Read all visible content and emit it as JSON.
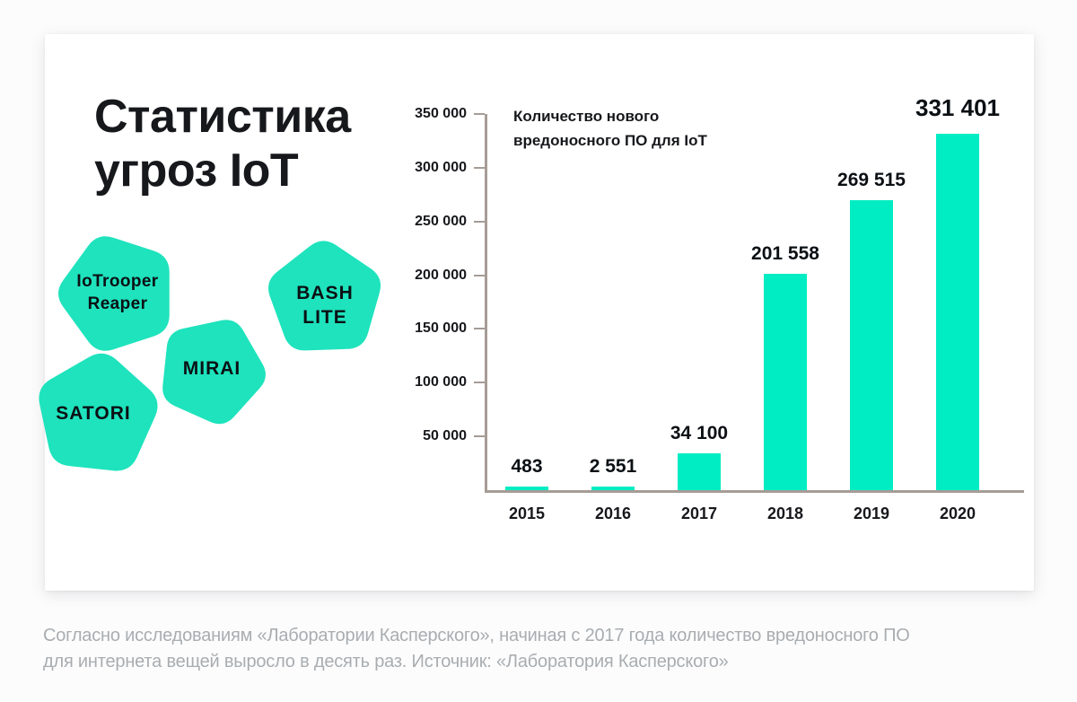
{
  "card": {
    "title": "Статистика угроз IoT",
    "threats": [
      {
        "name": "IoTrooper Reaper",
        "lines": [
          "IoTrooper",
          "Reaper"
        ]
      },
      {
        "name": "BASH LITE",
        "lines": [
          "BASH",
          "LITE"
        ]
      },
      {
        "name": "MIRAI",
        "lines": [
          "MIRAI"
        ]
      },
      {
        "name": "SATORI",
        "lines": [
          "SATORI"
        ]
      }
    ]
  },
  "chart_data": {
    "type": "bar",
    "title": "Количество нового вредоносного ПО для IoT",
    "categories": [
      "2015",
      "2016",
      "2017",
      "2018",
      "2019",
      "2020"
    ],
    "values": [
      483,
      2551,
      34100,
      201558,
      269515,
      331401
    ],
    "value_labels": [
      "483",
      "2 551",
      "34 100",
      "201 558",
      "269 515",
      "331 401"
    ],
    "ylim": [
      0,
      350000
    ],
    "y_tick_step": 50000,
    "y_tick_values": [
      50000,
      100000,
      150000,
      200000,
      250000,
      300000,
      350000
    ],
    "y_tick_labels": [
      "50 000",
      "100 000",
      "150 000",
      "200 000",
      "250 000",
      "300 000",
      "350 000"
    ],
    "grid": false,
    "legend": "none",
    "xlabel": "",
    "ylabel": ""
  },
  "colors": {
    "bar_teal": "#00edc3",
    "blob_teal": "#1ee3bd",
    "axis": "#a69c96",
    "text_dark": "#17181c",
    "caption_gray": "#a9adb0"
  },
  "caption_lines": [
    "Согласно исследованиям «Лаборатории Касперского», начиная с 2017 года количество вредоносного ПО",
    "для интернета вещей выросло в десять раз. Источник: «Лаборатория Касперского»"
  ]
}
